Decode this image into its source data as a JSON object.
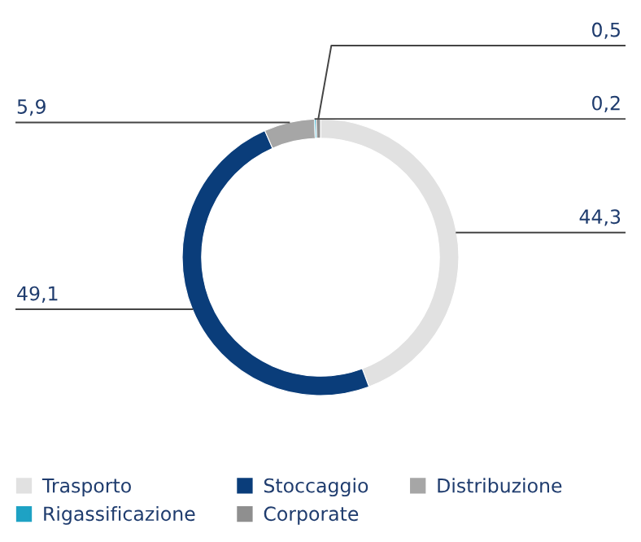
{
  "chart_data": {
    "type": "donut",
    "categories": [
      "Trasporto",
      "Stoccaggio",
      "Distribuzione",
      "Rigassificazione",
      "Corporate"
    ],
    "values": [
      44.3,
      49.1,
      5.9,
      0.2,
      0.5
    ],
    "colors": [
      "#e1e1e1",
      "#0a3d7a",
      "#a6a6a6",
      "#1ea2c4",
      "#8f8f8f"
    ],
    "value_labels": [
      "44,3",
      "49,1",
      "5,9",
      "0,2",
      "0,5"
    ],
    "legend": "bottom"
  }
}
